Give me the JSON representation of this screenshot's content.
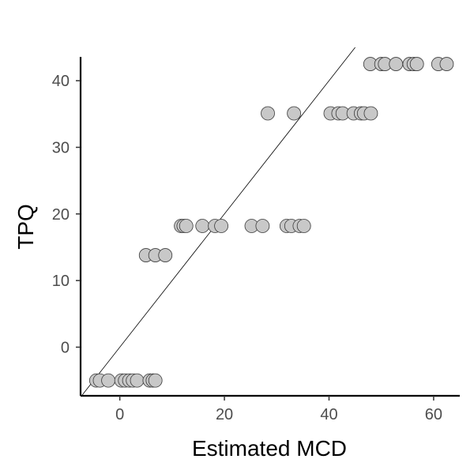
{
  "chart_data": {
    "type": "scatter",
    "title": "",
    "xlabel": "Estimated MCD",
    "ylabel": "TPQ",
    "xlim": [
      -7.5,
      65
    ],
    "ylim": [
      -7.3,
      45
    ],
    "x_ticks": [
      0,
      20,
      40,
      60
    ],
    "y_ticks": [
      0,
      10,
      20,
      30,
      40
    ],
    "grid": false,
    "legend": "none",
    "reference_line": {
      "slope": 1,
      "intercept": 0
    },
    "colors": {
      "point_fill": "#c8c8c8",
      "point_stroke": "#3a3a3a",
      "axis": "#000000",
      "tick_label": "#4d4d4d",
      "line": "#000000"
    },
    "points": [
      {
        "x": -4.5,
        "y": -5
      },
      {
        "x": -3.8,
        "y": -5
      },
      {
        "x": -2.2,
        "y": -5
      },
      {
        "x": 0.3,
        "y": -5
      },
      {
        "x": 1.0,
        "y": -5
      },
      {
        "x": 1.8,
        "y": -5
      },
      {
        "x": 2.5,
        "y": -5
      },
      {
        "x": 3.3,
        "y": -5
      },
      {
        "x": 5.7,
        "y": -5
      },
      {
        "x": 6.3,
        "y": -5
      },
      {
        "x": 6.8,
        "y": -5
      },
      {
        "x": 5.0,
        "y": 13.8
      },
      {
        "x": 6.8,
        "y": 13.8
      },
      {
        "x": 8.7,
        "y": 13.8
      },
      {
        "x": 11.7,
        "y": 18.2
      },
      {
        "x": 12.2,
        "y": 18.2
      },
      {
        "x": 12.7,
        "y": 18.2
      },
      {
        "x": 15.8,
        "y": 18.2
      },
      {
        "x": 18.2,
        "y": 18.2
      },
      {
        "x": 19.4,
        "y": 18.2
      },
      {
        "x": 25.2,
        "y": 18.2
      },
      {
        "x": 27.3,
        "y": 18.2
      },
      {
        "x": 31.9,
        "y": 18.2
      },
      {
        "x": 32.8,
        "y": 18.2
      },
      {
        "x": 34.4,
        "y": 18.2
      },
      {
        "x": 35.2,
        "y": 18.2
      },
      {
        "x": 28.3,
        "y": 35.1
      },
      {
        "x": 33.3,
        "y": 35.1
      },
      {
        "x": 40.3,
        "y": 35.1
      },
      {
        "x": 41.8,
        "y": 35.1
      },
      {
        "x": 42.6,
        "y": 35.1
      },
      {
        "x": 44.7,
        "y": 35.1
      },
      {
        "x": 46.1,
        "y": 35.1
      },
      {
        "x": 46.7,
        "y": 35.1
      },
      {
        "x": 48.0,
        "y": 35.1
      },
      {
        "x": 47.9,
        "y": 42.5
      },
      {
        "x": 50.0,
        "y": 42.5
      },
      {
        "x": 50.7,
        "y": 42.5
      },
      {
        "x": 52.8,
        "y": 42.5
      },
      {
        "x": 55.4,
        "y": 42.5
      },
      {
        "x": 56.2,
        "y": 42.5
      },
      {
        "x": 56.8,
        "y": 42.5
      },
      {
        "x": 60.9,
        "y": 42.5
      },
      {
        "x": 62.5,
        "y": 42.5
      }
    ]
  }
}
